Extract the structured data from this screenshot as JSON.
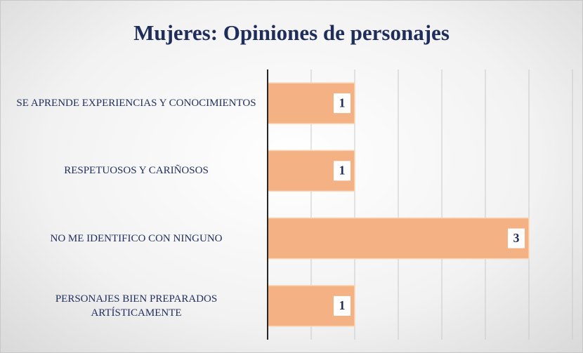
{
  "chart_data": {
    "type": "bar",
    "orientation": "horizontal",
    "title": "Mujeres: Opiniones de personajes",
    "categories": [
      "SE APRENDE EXPERIENCIAS Y CONOCIMIENTOS",
      "RESPETUOSOS Y CARIÑOSOS",
      "NO ME IDENTIFICO CON NINGUNO",
      "PERSONAJES BIEN PREPARADOS ARTÍSTICAMENTE"
    ],
    "values": [
      1,
      1,
      3,
      1
    ],
    "color": "#f4b183",
    "xlim": [
      0,
      3.5
    ],
    "xticks": [
      0,
      0.5,
      1,
      1.5,
      2,
      2.5,
      3,
      3.5
    ],
    "grid": true
  }
}
